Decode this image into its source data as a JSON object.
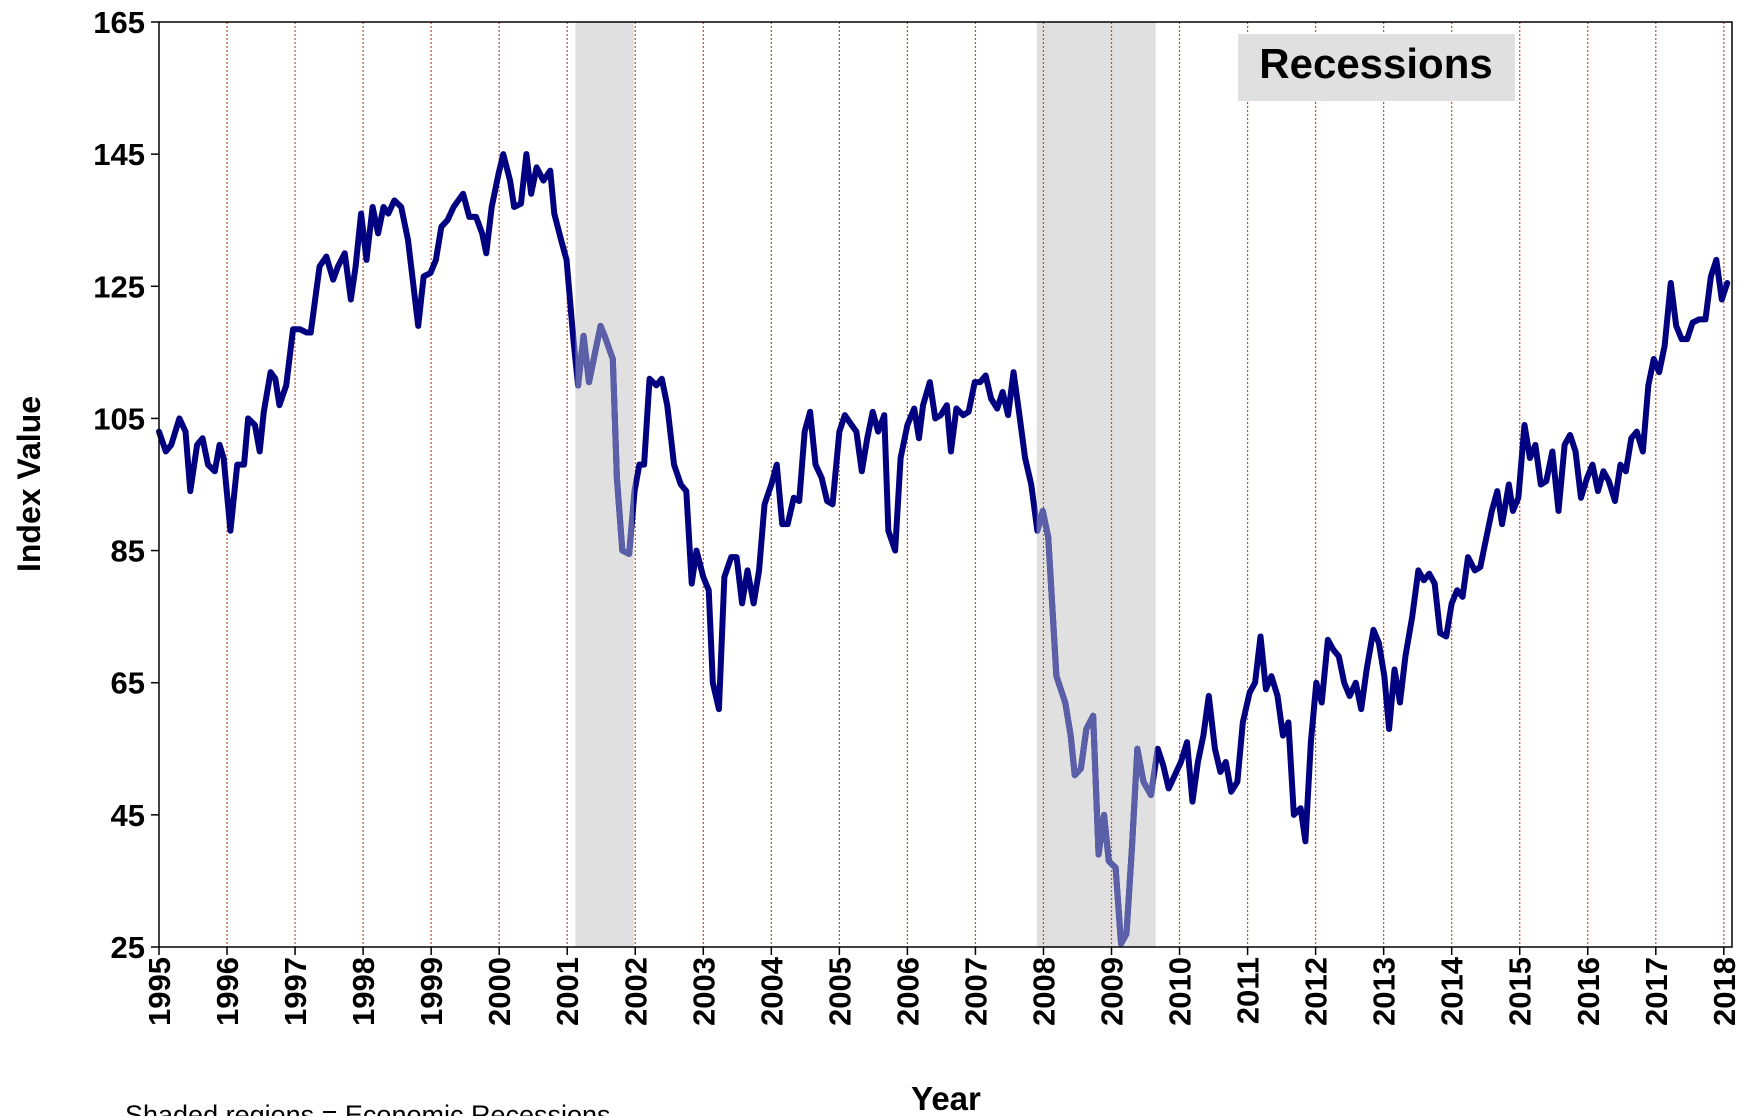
{
  "chart_data": {
    "type": "line",
    "y_label": "Index Value",
    "x_label": "Year",
    "annotation": "Recessions",
    "footnote": "Shaded regions  = Economic Recessions",
    "recessions": [
      [
        2001.12,
        2001.98
      ],
      [
        2007.9,
        2009.65
      ]
    ],
    "recession_fill": "#e0e0e0",
    "recession_line_color": "#5a5fa8",
    "grid": true,
    "grid_color": "#c0502a",
    "xlim": [
      1995,
      2018.12
    ],
    "ylim": [
      25,
      165
    ],
    "yticks": [
      25,
      45,
      65,
      85,
      105,
      125,
      145,
      165
    ],
    "xticks": [
      1995,
      1996,
      1997,
      1998,
      1999,
      2000,
      2001,
      2002,
      2003,
      2004,
      2005,
      2006,
      2007,
      2008,
      2009,
      2010,
      2011,
      2012,
      2013,
      2014,
      2015,
      2016,
      2017,
      2018
    ],
    "x": [
      1995.0,
      1995.1,
      1995.18,
      1995.3,
      1995.39,
      1995.46,
      1995.56,
      1995.64,
      1995.72,
      1995.82,
      1995.89,
      1995.95,
      1996.05,
      1996.15,
      1996.25,
      1996.31,
      1996.41,
      1996.48,
      1996.54,
      1996.64,
      1996.71,
      1996.77,
      1996.87,
      1996.97,
      1997.07,
      1997.17,
      1997.23,
      1997.36,
      1997.46,
      1997.56,
      1997.63,
      1997.73,
      1997.82,
      1997.89,
      1997.97,
      1998.05,
      1998.14,
      1998.22,
      1998.3,
      1998.37,
      1998.46,
      1998.56,
      1998.66,
      1998.81,
      1998.89,
      1998.99,
      1999.07,
      1999.15,
      1999.24,
      1999.33,
      1999.47,
      1999.56,
      1999.66,
      1999.75,
      1999.81,
      1999.89,
      1999.99,
      2000.06,
      2000.16,
      2000.22,
      2000.32,
      2000.4,
      2000.47,
      2000.55,
      2000.65,
      2000.75,
      2000.81,
      2000.91,
      2000.99,
      2001.09,
      2001.16,
      2001.24,
      2001.32,
      2001.39,
      2001.49,
      2001.55,
      2001.67,
      2001.73,
      2001.81,
      2001.91,
      2001.99,
      2002.06,
      2002.13,
      2002.21,
      2002.31,
      2002.39,
      2002.47,
      2002.57,
      2002.67,
      2002.75,
      2002.83,
      2002.9,
      2003.0,
      2003.08,
      2003.14,
      2003.23,
      2003.31,
      2003.41,
      2003.49,
      2003.57,
      2003.65,
      2003.74,
      2003.82,
      2003.9,
      2004.0,
      2004.08,
      2004.16,
      2004.24,
      2004.33,
      2004.41,
      2004.49,
      2004.57,
      2004.65,
      2004.74,
      2004.82,
      2004.9,
      2005.0,
      2005.08,
      2005.18,
      2005.25,
      2005.33,
      2005.41,
      2005.49,
      2005.57,
      2005.66,
      2005.72,
      2005.82,
      2005.9,
      2006.0,
      2006.1,
      2006.17,
      2006.23,
      2006.33,
      2006.41,
      2006.49,
      2006.58,
      2006.64,
      2006.72,
      2006.82,
      2006.9,
      2006.99,
      2007.07,
      2007.15,
      2007.23,
      2007.32,
      2007.4,
      2007.48,
      2007.56,
      2007.64,
      2007.73,
      2007.82,
      2007.91,
      2007.99,
      2008.07,
      2008.19,
      2008.32,
      2008.4,
      2008.46,
      2008.55,
      2008.63,
      2008.73,
      2008.81,
      2008.89,
      2008.96,
      2009.06,
      2009.14,
      2009.22,
      2009.3,
      2009.38,
      2009.47,
      2009.58,
      2009.68,
      2009.76,
      2009.84,
      2009.93,
      2010.02,
      2010.11,
      2010.19,
      2010.27,
      2010.35,
      2010.43,
      2010.52,
      2010.6,
      2010.68,
      2010.76,
      2010.85,
      2010.93,
      2011.03,
      2011.11,
      2011.19,
      2011.27,
      2011.35,
      2011.44,
      2011.52,
      2011.6,
      2011.68,
      2011.78,
      2011.85,
      2011.93,
      2012.01,
      2012.09,
      2012.18,
      2012.26,
      2012.34,
      2012.42,
      2012.5,
      2012.59,
      2012.67,
      2012.75,
      2012.85,
      2012.93,
      2013.01,
      2013.08,
      2013.16,
      2013.24,
      2013.32,
      2013.42,
      2013.51,
      2013.59,
      2013.67,
      2013.75,
      2013.83,
      2013.92,
      2014.0,
      2014.08,
      2014.16,
      2014.24,
      2014.34,
      2014.42,
      2014.51,
      2014.59,
      2014.67,
      2014.74,
      2014.84,
      2014.9,
      2014.98,
      2015.07,
      2015.15,
      2015.23,
      2015.31,
      2015.39,
      2015.48,
      2015.57,
      2015.66,
      2015.74,
      2015.82,
      2015.9,
      2015.99,
      2016.07,
      2016.15,
      2016.23,
      2016.31,
      2016.4,
      2016.48,
      2016.56,
      2016.64,
      2016.72,
      2016.81,
      2016.89,
      2016.97,
      2017.05,
      2017.13,
      2017.22,
      2017.3,
      2017.38,
      2017.46,
      2017.54,
      2017.64,
      2017.73,
      2017.81,
      2017.89,
      2017.97,
      2018.05
    ],
    "series": [
      {
        "color": "#000080",
        "values": [
          103,
          100,
          101,
          105,
          103,
          94,
          101,
          102,
          98,
          97,
          101,
          99,
          88,
          98,
          98,
          105,
          104,
          100,
          106,
          112,
          111,
          107,
          110,
          118.5,
          118.5,
          118,
          118,
          128,
          129.5,
          126,
          128,
          130,
          123,
          128,
          136,
          129,
          137,
          133,
          137,
          136,
          138,
          137,
          132,
          119,
          126.5,
          127,
          129,
          134,
          135,
          137,
          139,
          135.5,
          135.5,
          133,
          130,
          137,
          142,
          145,
          141,
          137,
          137.5,
          145,
          139,
          143,
          141,
          142.5,
          136,
          132,
          129,
          117,
          110,
          117.5,
          110.5,
          114,
          119,
          117.5,
          114,
          96,
          85,
          84.5,
          94,
          98,
          98,
          111,
          110,
          111,
          107,
          98,
          95,
          94,
          80,
          85,
          81,
          79,
          65,
          61,
          81,
          84,
          84,
          77,
          82,
          77,
          82,
          92,
          95,
          98,
          89,
          89,
          93,
          92.5,
          103,
          106,
          98,
          96,
          92.5,
          92,
          103,
          105.5,
          104,
          103,
          97,
          102,
          106,
          103,
          105.5,
          88,
          85,
          99,
          104,
          106.5,
          102,
          107,
          110.5,
          105,
          105.5,
          107,
          100,
          106.5,
          105.5,
          106,
          110.5,
          110.5,
          111.5,
          108,
          106.5,
          109,
          105.5,
          112,
          106,
          99,
          95,
          88,
          91,
          87,
          66,
          62,
          57,
          51,
          52,
          58,
          60,
          39,
          45,
          38,
          37,
          25.5,
          27,
          40,
          55,
          50,
          48,
          55,
          52.5,
          49,
          51,
          53,
          56,
          47,
          53,
          57,
          63,
          55,
          51.5,
          53,
          48.5,
          50,
          59,
          63.5,
          65,
          72,
          64,
          66,
          63,
          57,
          59,
          45,
          46,
          41,
          56,
          65,
          62,
          71.5,
          70,
          69,
          65,
          63,
          65,
          61,
          67,
          73,
          71,
          66,
          58,
          67,
          62,
          69,
          75,
          82,
          80.5,
          81.5,
          80,
          72.5,
          72,
          77,
          79,
          78,
          84,
          82,
          82.5,
          87,
          91,
          94,
          89,
          95,
          91,
          93,
          104,
          99,
          101,
          95,
          95.5,
          100,
          91,
          101,
          102.5,
          100,
          93,
          96,
          98,
          94,
          97,
          95.5,
          92.5,
          98,
          97,
          102,
          103,
          100,
          110,
          114,
          112,
          116,
          125.5,
          119,
          117,
          117,
          119.5,
          120,
          120,
          126.5,
          129,
          123,
          125.5
        ]
      }
    ]
  }
}
